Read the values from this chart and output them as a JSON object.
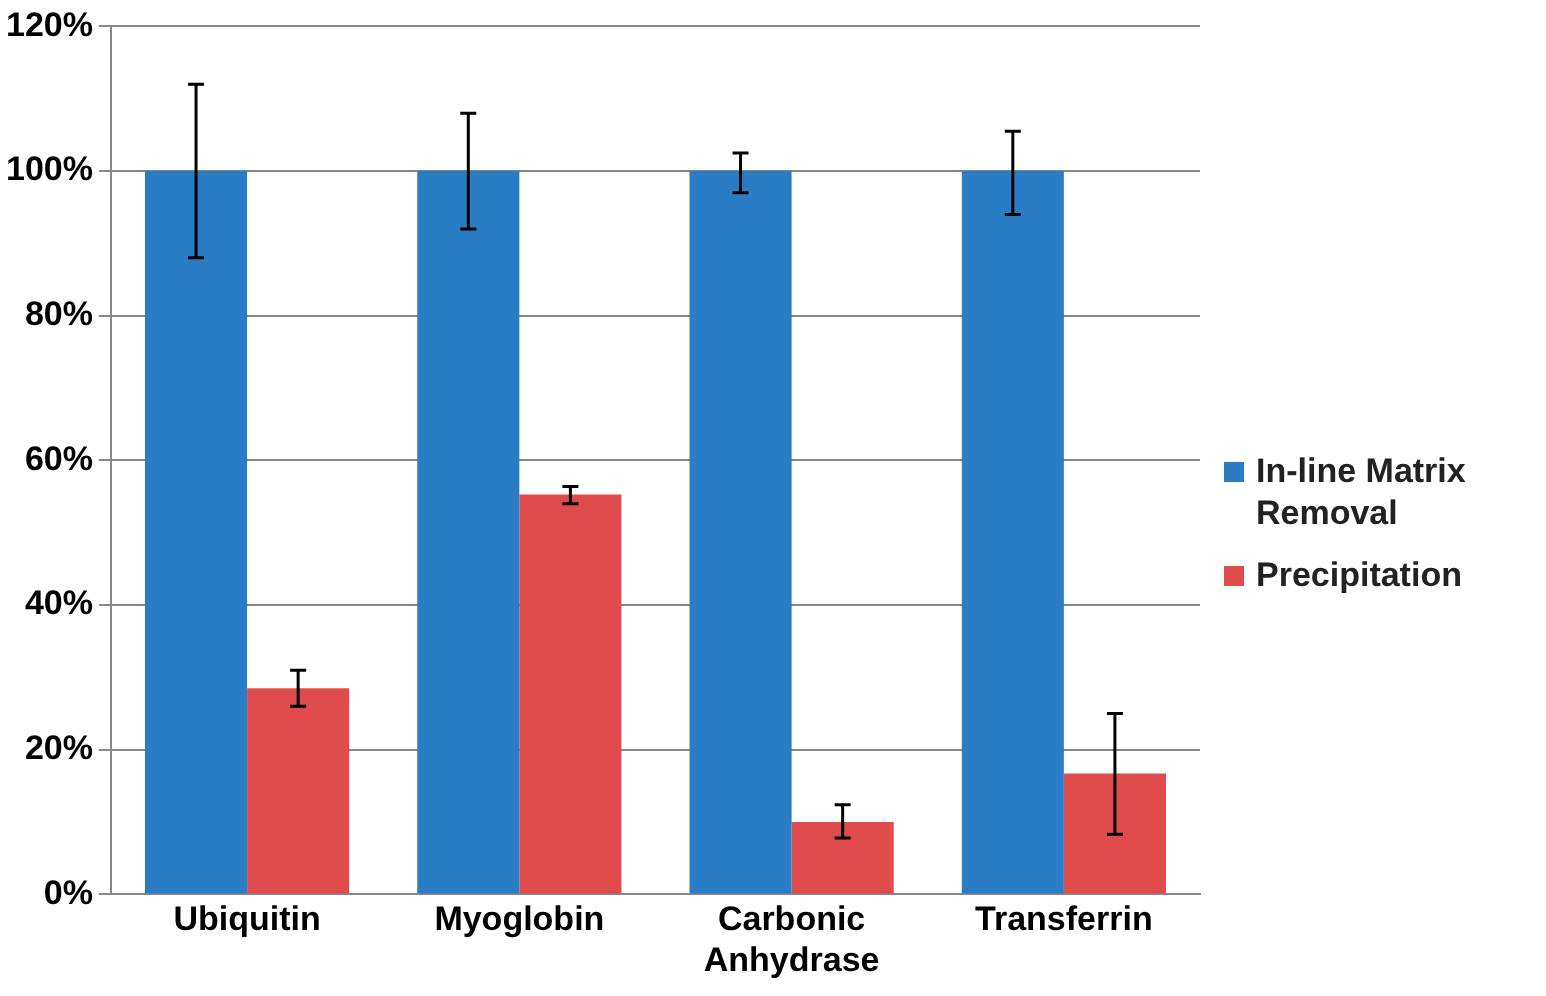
{
  "chart_data": {
    "type": "bar",
    "categories": [
      "Ubiquitin",
      "Myoglobin",
      "Carbonic Anhydrase",
      "Transferrin"
    ],
    "series": [
      {
        "name": "In-line Matrix Removal",
        "color": "#2a7dc4",
        "values": [
          100,
          100,
          100,
          100
        ],
        "errors": [
          [
            88,
            112
          ],
          [
            92,
            108
          ],
          [
            97,
            102.5
          ],
          [
            94,
            105.5
          ]
        ]
      },
      {
        "name": "Precipitation",
        "color": "#e04b4b",
        "values": [
          28.5,
          55.3,
          10,
          16.7
        ],
        "errors": [
          [
            26,
            31
          ],
          [
            54,
            56.4
          ],
          [
            7.8,
            12.4
          ],
          [
            8.3,
            25
          ]
        ]
      }
    ],
    "ylim": [
      0,
      120
    ],
    "yticks": [
      {
        "value": 0,
        "label": "0%"
      },
      {
        "value": 20,
        "label": "20%"
      },
      {
        "value": 40,
        "label": "40%"
      },
      {
        "value": 60,
        "label": "60%"
      },
      {
        "value": 80,
        "label": "80%"
      },
      {
        "value": 100,
        "label": "100%"
      },
      {
        "value": 120,
        "label": "120%"
      }
    ],
    "grid": "y",
    "legend": "right"
  }
}
